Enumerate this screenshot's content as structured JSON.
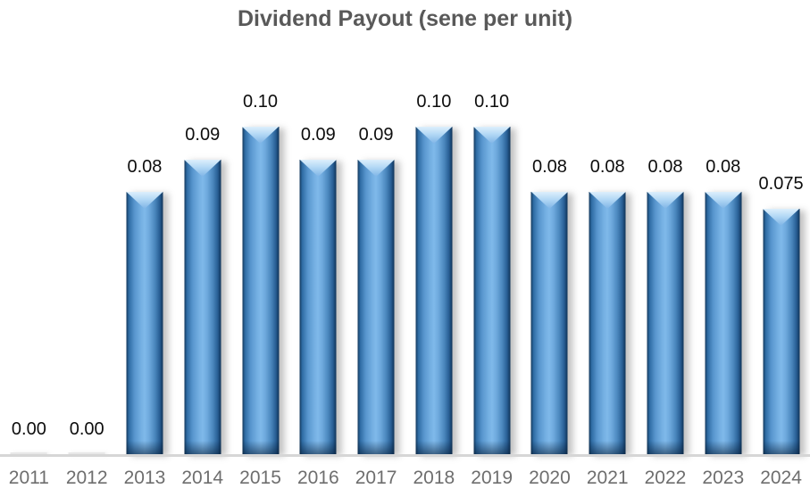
{
  "title": "Dividend Payout (sene per unit)",
  "chart_data": {
    "type": "bar",
    "title": "Dividend Payout (sene per unit)",
    "categories": [
      "2011",
      "2012",
      "2013",
      "2014",
      "2015",
      "2016",
      "2017",
      "2018",
      "2019",
      "2020",
      "2021",
      "2022",
      "2023",
      "2024"
    ],
    "values": [
      0.0,
      0.0,
      0.08,
      0.09,
      0.1,
      0.09,
      0.09,
      0.1,
      0.1,
      0.08,
      0.08,
      0.08,
      0.08,
      0.075
    ],
    "data_labels": [
      "0.00",
      "0.00",
      "0.08",
      "0.09",
      "0.10",
      "0.09",
      "0.09",
      "0.10",
      "0.10",
      "0.08",
      "0.08",
      "0.08",
      "0.08",
      "0.075"
    ],
    "xlabel": "",
    "ylabel": "",
    "ylim": [
      0,
      0.105
    ],
    "grid": false,
    "legend_position": "none",
    "colors": {
      "bar_base": "#5b9bd5",
      "bar_edge_dark": "#14395c",
      "bar_center_light": "#7fb9ea",
      "bar_bevel_highlight": "#ddeffc",
      "axis_line": "#d6d6d6",
      "tick_label": "#6e6e6e",
      "data_label": "#0d0d0d",
      "title": "#595959",
      "background": "#ffffff"
    }
  }
}
